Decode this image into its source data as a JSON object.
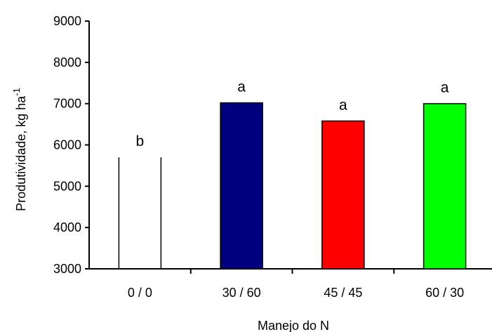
{
  "chart_data": {
    "type": "bar",
    "categories": [
      "0 / 0",
      "30 / 60",
      "45 / 45",
      "60 / 30"
    ],
    "values": [
      5700,
      7020,
      6580,
      7000
    ],
    "bar_labels": [
      "b",
      "a",
      "a",
      "a"
    ],
    "bar_colors": [
      "#ffffff",
      "#00007f",
      "#ff0000",
      "#00ff00"
    ],
    "xlabel": "Manejo do N",
    "ylabel": "Produtividade, kg ha",
    "ylabel_superscript": "-1",
    "ylim": [
      3000,
      9000
    ],
    "yticks": [
      3000,
      4000,
      5000,
      6000,
      7000,
      8000,
      9000
    ],
    "grid": false,
    "legend": "none"
  }
}
